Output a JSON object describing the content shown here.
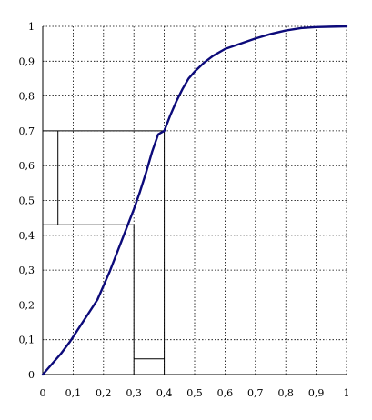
{
  "chart_data": {
    "type": "line",
    "title": "",
    "xlabel": "",
    "ylabel": "",
    "xlim": [
      0,
      1
    ],
    "ylim": [
      0,
      1
    ],
    "grid": true,
    "x_ticks": [
      0,
      0.1,
      0.2,
      0.3,
      0.4,
      0.5,
      0.6,
      0.7,
      0.8,
      0.9,
      1
    ],
    "x_tick_labels": [
      "0",
      "0,1",
      "0,2",
      "0,3",
      "0,4",
      "0,5",
      "0,6",
      "0,7",
      "0,8",
      "0,9",
      "1"
    ],
    "y_ticks": [
      0,
      0.1,
      0.2,
      0.3,
      0.4,
      0.5,
      0.6,
      0.7,
      0.8,
      0.9,
      1
    ],
    "y_tick_labels": [
      "0",
      "0,1",
      "0,2",
      "0,3",
      "0,4",
      "0,5",
      "0,6",
      "0,7",
      "0,8",
      "0,9",
      "1"
    ],
    "series": [
      {
        "color": "#0c0a7a",
        "x": [
          0,
          0.03,
          0.06,
          0.09,
          0.12,
          0.15,
          0.18,
          0.2,
          0.22,
          0.24,
          0.26,
          0.28,
          0.3,
          0.32,
          0.34,
          0.36,
          0.38,
          0.4,
          0.42,
          0.44,
          0.46,
          0.48,
          0.5,
          0.53,
          0.56,
          0.6,
          0.65,
          0.7,
          0.75,
          0.8,
          0.85,
          0.9,
          0.95,
          1
        ],
        "y": [
          0,
          0.03,
          0.06,
          0.095,
          0.135,
          0.175,
          0.215,
          0.255,
          0.295,
          0.34,
          0.385,
          0.43,
          0.475,
          0.525,
          0.58,
          0.64,
          0.69,
          0.7,
          0.745,
          0.785,
          0.82,
          0.85,
          0.87,
          0.895,
          0.915,
          0.935,
          0.95,
          0.965,
          0.978,
          0.988,
          0.995,
          0.998,
          0.999,
          1
        ]
      }
    ],
    "guide_lines": [
      {
        "x": [
          0,
          0.4
        ],
        "y": [
          0.7,
          0.7
        ]
      },
      {
        "x": [
          0.4,
          0.4
        ],
        "y": [
          0.7,
          0
        ]
      },
      {
        "x": [
          0,
          0.3
        ],
        "y": [
          0.43,
          0.43
        ]
      },
      {
        "x": [
          0.3,
          0.3
        ],
        "y": [
          0.43,
          0
        ]
      },
      {
        "x": [
          0.05,
          0.05
        ],
        "y": [
          0.43,
          0.7
        ]
      },
      {
        "x": [
          0.3,
          0.4
        ],
        "y": [
          0.045,
          0.045
        ]
      }
    ]
  }
}
